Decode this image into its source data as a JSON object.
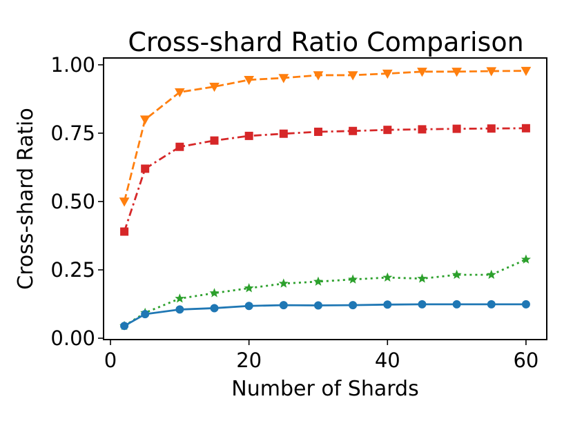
{
  "chart_data": {
    "type": "line",
    "title": "Cross-shard Ratio Comparison",
    "xlabel": "Number of Shards",
    "ylabel": "Cross-shard Ratio",
    "xlim": [
      -1,
      63
    ],
    "ylim": [
      -0.005,
      1.025
    ],
    "xticks": [
      0,
      20,
      40,
      60
    ],
    "xtick_labels": [
      "0",
      "20",
      "40",
      "60"
    ],
    "yticks": [
      0.0,
      0.25,
      0.5,
      0.75,
      1.0
    ],
    "ytick_labels": [
      "0.00",
      "0.25",
      "0.50",
      "0.75",
      "1.00"
    ],
    "grid": false,
    "legend": "none",
    "x": [
      2,
      5,
      10,
      15,
      20,
      25,
      30,
      35,
      40,
      45,
      50,
      55,
      60
    ],
    "series": [
      {
        "color": "#ff7f0e",
        "line_style": "dashed",
        "marker": "triangle-down",
        "values": [
          0.5,
          0.8,
          0.9,
          0.92,
          0.945,
          0.952,
          0.962,
          0.962,
          0.968,
          0.975,
          0.975,
          0.977,
          0.978
        ]
      },
      {
        "color": "#d62728",
        "line_style": "dash-dot",
        "marker": "square",
        "values": [
          0.39,
          0.62,
          0.7,
          0.723,
          0.74,
          0.748,
          0.755,
          0.758,
          0.762,
          0.764,
          0.766,
          0.767,
          0.768
        ]
      },
      {
        "color": "#2ca02c",
        "line_style": "dotted",
        "marker": "star",
        "values": [
          0.045,
          0.093,
          0.145,
          0.165,
          0.183,
          0.2,
          0.207,
          0.215,
          0.222,
          0.218,
          0.232,
          0.232,
          0.288
        ]
      },
      {
        "color": "#1f77b4",
        "line_style": "solid",
        "marker": "circle",
        "values": [
          0.045,
          0.088,
          0.105,
          0.11,
          0.118,
          0.121,
          0.12,
          0.121,
          0.123,
          0.124,
          0.124,
          0.124,
          0.124
        ]
      }
    ]
  }
}
